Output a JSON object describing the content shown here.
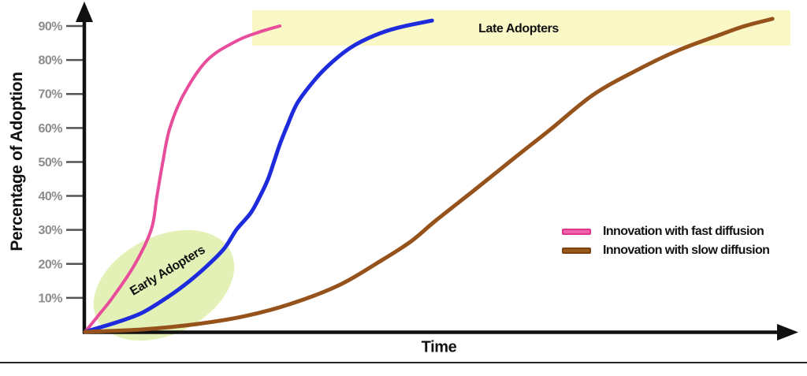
{
  "chart_data": {
    "type": "line",
    "title": "",
    "xlabel": "Time",
    "ylabel": "Percentage of Adoption",
    "ylim": [
      0,
      100
    ],
    "x_range_units": [
      0,
      100
    ],
    "grid": "off",
    "legend_position": "right-middle",
    "y_ticks": [
      {
        "value": 10,
        "label": "10%"
      },
      {
        "value": 20,
        "label": "20%"
      },
      {
        "value": 30,
        "label": "30%"
      },
      {
        "value": 40,
        "label": "40%"
      },
      {
        "value": 50,
        "label": "50%"
      },
      {
        "value": 60,
        "label": "60%"
      },
      {
        "value": 70,
        "label": "70%"
      },
      {
        "value": 80,
        "label": "80%"
      },
      {
        "value": 90,
        "label": "90%"
      }
    ],
    "series": [
      {
        "id": "fast-diffusion",
        "legend_label": "Innovation with fast diffusion",
        "color": "#e84d9b",
        "stroke_width": 4,
        "points": [
          [
            0,
            0
          ],
          [
            1.9,
            4.9
          ],
          [
            3.9,
            10.2
          ],
          [
            6.9,
            19.5
          ],
          [
            9.3,
            30.1
          ],
          [
            10.1,
            39.9
          ],
          [
            10.9,
            49.6
          ],
          [
            11.9,
            59.8
          ],
          [
            13.9,
            70.0
          ],
          [
            17.2,
            80.0
          ],
          [
            21.3,
            85.6
          ],
          [
            24.6,
            88.3
          ],
          [
            27.4,
            90.0
          ]
        ]
      },
      {
        "id": "medium-diffusion-unlabeled",
        "legend_label": null,
        "color": "#1d2bdd",
        "stroke_width": 5,
        "points": [
          [
            0,
            0
          ],
          [
            4.7,
            3.0
          ],
          [
            8.0,
            5.6
          ],
          [
            11.6,
            10.2
          ],
          [
            14.6,
            14.8
          ],
          [
            17.2,
            19.5
          ],
          [
            19.6,
            24.6
          ],
          [
            21.3,
            30.1
          ],
          [
            23.3,
            35.0
          ],
          [
            24.6,
            39.9
          ],
          [
            25.7,
            44.8
          ],
          [
            26.5,
            49.6
          ],
          [
            27.4,
            55.2
          ],
          [
            28.5,
            61.0
          ],
          [
            29.9,
            67.5
          ],
          [
            32.4,
            74.4
          ],
          [
            34.6,
            79.1
          ],
          [
            37.4,
            83.7
          ],
          [
            40.7,
            87.2
          ],
          [
            44.0,
            89.5
          ],
          [
            48.8,
            91.6
          ]
        ]
      },
      {
        "id": "slow-diffusion",
        "legend_label": "Innovation with slow diffusion",
        "color": "#96521b",
        "stroke_width": 5,
        "points": [
          [
            0,
            0
          ],
          [
            8.0,
            0.7
          ],
          [
            15.7,
            2.3
          ],
          [
            22.4,
            4.6
          ],
          [
            29.0,
            8.3
          ],
          [
            35.7,
            13.7
          ],
          [
            41.2,
            20.4
          ],
          [
            45.7,
            26.4
          ],
          [
            49.3,
            32.7
          ],
          [
            54.5,
            41.3
          ],
          [
            60.4,
            51.2
          ],
          [
            65.6,
            59.8
          ],
          [
            71.5,
            69.8
          ],
          [
            77.8,
            77.2
          ],
          [
            83.4,
            82.8
          ],
          [
            89.0,
            87.2
          ],
          [
            92.8,
            90.0
          ],
          [
            96.7,
            92.1
          ]
        ]
      }
    ],
    "annotations": {
      "early_adopters": {
        "label": "Early Adopters",
        "shape": "ellipse",
        "fill": "#e1f0ae",
        "region": "lower-left around 0-30% adoption"
      },
      "late_adopters": {
        "label": "Late Adopters",
        "shape": "horizontal-band",
        "fill": "#fbf8c8",
        "band_adoption_range_pct": [
          84,
          95
        ]
      }
    },
    "legend": {
      "items": [
        {
          "label": "Innovation with fast diffusion",
          "color": "#f163aa",
          "border": "#e2358d"
        },
        {
          "label": "Innovation with slow diffusion",
          "color": "#9a591c",
          "border": "#7a4310"
        }
      ]
    },
    "colors": {
      "axis": "#111111",
      "tick_mark": "#555555",
      "tick_label": "#8c8c8c",
      "divider": "#262626"
    }
  }
}
